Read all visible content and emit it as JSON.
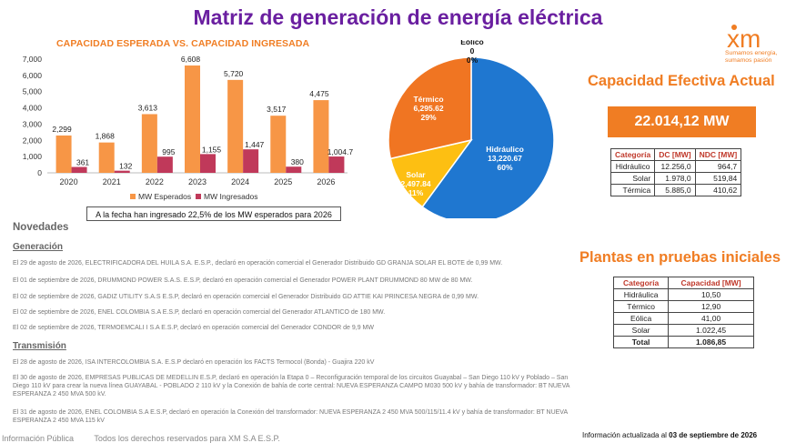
{
  "title": "Matriz de generación de energía eléctrica",
  "bar_chart_title": "CAPACIDAD ESPERADA VS. CAPACIDAD INGRESADA",
  "chart_data": [
    {
      "type": "bar",
      "title": "CAPACIDAD ESPERADA VS. CAPACIDAD INGRESADA",
      "categories": [
        "2020",
        "2021",
        "2022",
        "2023",
        "2024",
        "2025",
        "2026"
      ],
      "series": [
        {
          "name": "MW Esperados",
          "values": [
            2299,
            1868,
            3613,
            6608,
            5720,
            3517,
            4475
          ],
          "labels": [
            "2,299",
            "1,868",
            "3,613",
            "6,608",
            "5,720",
            "3,517",
            "4,475"
          ],
          "color": "#f79646"
        },
        {
          "name": "MW Ingresados",
          "values": [
            361,
            132,
            995,
            1155,
            1447,
            380,
            1004.7
          ],
          "labels": [
            "361",
            "132",
            "995",
            "1,155",
            "1,447",
            "380",
            "1,004.7"
          ],
          "color": "#c0395a"
        }
      ],
      "yticks": [
        "0",
        "1,000",
        "2,000",
        "3,000",
        "4,000",
        "5,000",
        "6,000",
        "7,000"
      ],
      "ylim": [
        0,
        7000
      ],
      "legend": "bottom"
    },
    {
      "type": "pie",
      "slices": [
        {
          "name": "Hidráulico",
          "value": 13220.67,
          "value_label": "13,220.67",
          "pct": "60%",
          "color": "#1f77d0"
        },
        {
          "name": "Solar",
          "value": 2497.84,
          "value_label": "2,497.84",
          "pct": "11%",
          "color": "#fdbf12"
        },
        {
          "name": "Térmico",
          "value": 6295.62,
          "value_label": "6,295.62",
          "pct": "29%",
          "color": "#f07522"
        },
        {
          "name": "Eólico",
          "value": 0,
          "value_label": "0",
          "pct": "0%",
          "color": "#888888"
        }
      ]
    }
  ],
  "note": "A la fecha han ingresado 22,5% de los MW esperados para 2026",
  "novedades": {
    "title": "Novedades",
    "generacion_title": "Generación",
    "generacion": [
      "El 29 de agosto de 2026, ELECTRIFICADORA DEL HUILA S.A. E.S.P., declaró en operación comercial el Generador Distribuido GD GRANJA SOLAR EL BOTE de 0,99 MW.",
      "El 01 de septiembre de 2026, DRUMMOND POWER S.A.S. E.S.P, declaró en operación comercial el Generador POWER PLANT DRUMMOND 80 MW de 80 MW.",
      "El 02 de septiembre de 2026, GADIZ UTILITY S.A.S E.S.P, declaró en operación comercial el Generador Distribuido GD ATTIE KAI PRINCESA NEGRA de 0,99 MW.",
      "El 02 de septiembre de 2026, ENEL COLOMBIA S.A E.S.P, declaró en operación comercial del Generador ATLANTICO de 180 MW.",
      "El 02 de septiembre de 2026, TERMOEMCALI I S.A E.S.P, declaró en operación comercial del Generador CONDOR de 9,9 MW"
    ],
    "transmision_title": "Transmisión",
    "transmision": [
      "El 28 de agosto de 2026, ISA INTERCOLOMBIA S.A. E.S.P declaró en operación los FACTS Termocol (Bonda) - Guajira 220 kV",
      "El 30 de agosto de 2026, EMPRESAS PUBLICAS DE MEDELLIN E.S.P, declaró en operación la Etapa 0 – Reconfiguración temporal de los circuitos Guayabal – San Diego 110 kV y Poblado – San Diego 110 kV para crear la nueva línea GUAYABAL - POBLADO 2 110 kV y la Conexión de bahía de corte central: NUEVA ESPERANZA CAMPO M030 500 kV y bahía de transformador: BT NUEVA ESPERANZA 2 450 MVA 500 kV.",
      "El 31 de agosto de 2026, ENEL COLOMBIA S.A E.S.P, declaró en operación la Conexión del transformador: NUEVA ESPERANZA 2 450 MVA 500/115/11.4 kV y bahía de transformador: BT NUEVA ESPERANZA 2 450 MVA 115 kV"
    ]
  },
  "logo": {
    "mark": "xm",
    "tagline1": "Sumamos energía,",
    "tagline2": "sumamos pasión",
    "color": "#f07d23"
  },
  "capacidad": {
    "title": "Capacidad Efectiva Actual",
    "total": "22.014,12 MW",
    "headers": [
      "Categoría",
      "DC [MW]",
      "NDC [MW]"
    ],
    "rows": [
      [
        "Hidráulico",
        "12.256,0",
        "964,7"
      ],
      [
        "Solar",
        "1.978,0",
        "519,84"
      ],
      [
        "Térmica",
        "5.885,0",
        "410,62"
      ]
    ]
  },
  "plantas": {
    "title": "Plantas en pruebas iniciales",
    "headers": [
      "Categoría",
      "Capacidad [MW]"
    ],
    "rows": [
      [
        "Hidráulica",
        "10,50"
      ],
      [
        "Térmico",
        "12,90"
      ],
      [
        "Eólica",
        "41,00"
      ],
      [
        "Solar",
        "1.022,45"
      ]
    ],
    "total": [
      "Total",
      "1.086,85"
    ]
  },
  "footer": {
    "left": "Información Pública         Todos los derechos reservados para XM S.A E.S.P.",
    "right_prefix": "Información actualizada al ",
    "right_date": "03 de septiembre de 2026"
  }
}
